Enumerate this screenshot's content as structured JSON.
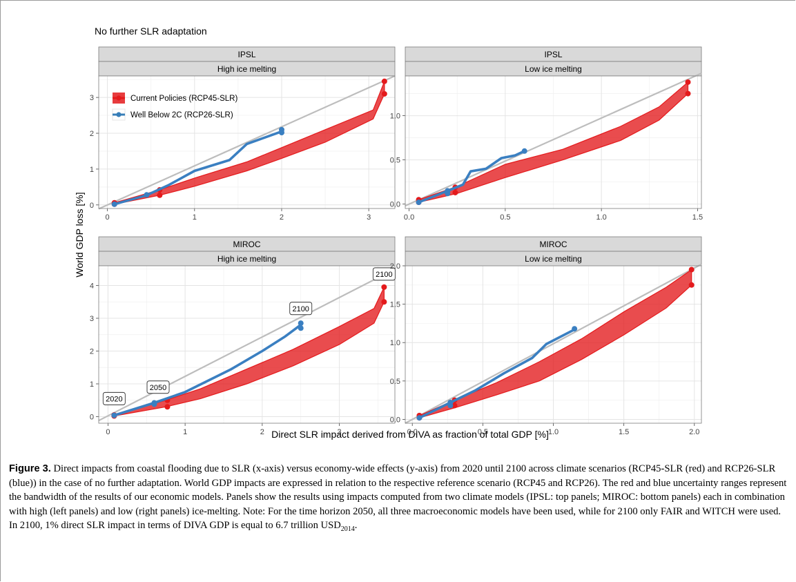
{
  "figure": {
    "title": "No further SLR adaptation",
    "xlabel": "Direct SLR impact derived from DIVA as fraction of total GDP [%]",
    "ylabel": "World GDP loss [%]",
    "legend": [
      {
        "label": "Current Policies (RCP45-SLR)",
        "color": "#e41a1c"
      },
      {
        "label": "Well Below 2C (RCP26-SLR)",
        "color": "#377eb8"
      }
    ],
    "colors": {
      "red": "#e41a1c",
      "red_fill": "#e31a1c",
      "blue": "#3a7fc1",
      "ref_line": "#bdbdbd",
      "strip": "#d9d9d9"
    }
  },
  "chart_data": [
    {
      "type": "area",
      "strip1": "IPSL",
      "strip2": "High ice melting",
      "xlim": [
        -0.1,
        3.3
      ],
      "ylim": [
        -0.1,
        3.6
      ],
      "xticks": [
        0,
        1,
        2,
        3
      ],
      "yticks": [
        0,
        1,
        2,
        3
      ],
      "xtick_labels": [
        "0",
        "1",
        "2",
        "3"
      ],
      "ytick_labels": [
        "0",
        "1",
        "2",
        "3"
      ],
      "reference_line": [
        [
          -0.1,
          -0.11
        ],
        [
          3.3,
          3.6
        ]
      ],
      "series": [
        {
          "name": "Current Policies (RCP45-SLR)",
          "x": [
            0.08,
            0.6,
            1.0,
            1.6,
            2.0,
            2.5,
            3.05,
            3.18
          ],
          "upper": [
            0.06,
            0.42,
            0.75,
            1.2,
            1.6,
            2.1,
            2.65,
            3.45
          ],
          "lower": [
            0.02,
            0.27,
            0.52,
            0.95,
            1.3,
            1.75,
            2.4,
            3.1
          ],
          "points": [
            [
              0.08,
              0.06
            ],
            [
              0.08,
              0.02
            ],
            [
              0.6,
              0.42
            ],
            [
              0.6,
              0.27
            ],
            [
              3.18,
              3.45
            ],
            [
              3.18,
              3.1
            ]
          ]
        },
        {
          "name": "Well Below 2C (RCP26-SLR)",
          "x": [
            0.08,
            0.45,
            0.7,
            1.0,
            1.4,
            1.6,
            2.0
          ],
          "y": [
            0.02,
            0.27,
            0.55,
            0.95,
            1.25,
            1.7,
            2.05
          ],
          "points": [
            [
              0.08,
              0.02
            ],
            [
              0.45,
              0.28
            ],
            [
              2.0,
              2.1
            ],
            [
              2.0,
              2.02
            ]
          ]
        }
      ]
    },
    {
      "type": "area",
      "strip1": "IPSL",
      "strip2": "Low ice melting",
      "xlim": [
        -0.02,
        1.52
      ],
      "ylim": [
        -0.05,
        1.45
      ],
      "xticks": [
        0,
        0.5,
        1.0,
        1.5
      ],
      "yticks": [
        0,
        0.5,
        1.0
      ],
      "xtick_labels": [
        "0.0",
        "0.5",
        "1.0",
        "1.5"
      ],
      "ytick_labels": [
        "0.0",
        "0.5",
        "1.0"
      ],
      "reference_line": [
        [
          -0.02,
          -0.02
        ],
        [
          1.52,
          1.48
        ]
      ],
      "series": [
        {
          "name": "Current Policies (RCP45-SLR)",
          "x": [
            0.05,
            0.25,
            0.5,
            0.8,
            1.1,
            1.3,
            1.45
          ],
          "upper": [
            0.05,
            0.2,
            0.45,
            0.62,
            0.88,
            1.1,
            1.38
          ],
          "lower": [
            0.02,
            0.12,
            0.3,
            0.5,
            0.72,
            0.95,
            1.25
          ],
          "points": [
            [
              0.05,
              0.05
            ],
            [
              0.05,
              0.02
            ],
            [
              0.24,
              0.19
            ],
            [
              0.24,
              0.13
            ],
            [
              1.45,
              1.38
            ],
            [
              1.45,
              1.25
            ]
          ]
        },
        {
          "name": "Well Below 2C (RCP26-SLR)",
          "x": [
            0.05,
            0.2,
            0.28,
            0.32,
            0.4,
            0.48,
            0.55,
            0.6
          ],
          "y": [
            0.02,
            0.15,
            0.22,
            0.37,
            0.4,
            0.52,
            0.55,
            0.6
          ],
          "points": [
            [
              0.05,
              0.02
            ],
            [
              0.2,
              0.15
            ],
            [
              0.2,
              0.12
            ],
            [
              0.6,
              0.6
            ]
          ]
        }
      ]
    },
    {
      "type": "area",
      "strip1": "MIROC",
      "strip2": "High ice melting",
      "xlim": [
        -0.12,
        3.72
      ],
      "ylim": [
        -0.2,
        4.6
      ],
      "xticks": [
        0,
        1,
        2,
        3
      ],
      "yticks": [
        0,
        1,
        2,
        3,
        4
      ],
      "xtick_labels": [
        "0",
        "1",
        "2",
        "3"
      ],
      "ytick_labels": [
        "0",
        "1",
        "2",
        "3",
        "4"
      ],
      "reference_line": [
        [
          -0.12,
          -0.12
        ],
        [
          3.72,
          4.5
        ]
      ],
      "series": [
        {
          "name": "Current Policies (RCP45-SLR)",
          "x": [
            0.08,
            0.75,
            1.2,
            1.8,
            2.4,
            3.0,
            3.45,
            3.58
          ],
          "upper": [
            0.05,
            0.5,
            0.85,
            1.45,
            2.05,
            2.75,
            3.3,
            3.95
          ],
          "lower": [
            0.02,
            0.3,
            0.55,
            1.0,
            1.55,
            2.2,
            2.85,
            3.5
          ],
          "points": [
            [
              0.08,
              0.05
            ],
            [
              0.08,
              0.02
            ],
            [
              0.77,
              0.5
            ],
            [
              0.77,
              0.3
            ],
            [
              3.58,
              3.95
            ],
            [
              3.58,
              3.5
            ]
          ]
        },
        {
          "name": "Well Below 2C (RCP26-SLR)",
          "x": [
            0.08,
            0.6,
            1.0,
            1.6,
            2.0,
            2.3,
            2.5
          ],
          "y": [
            0.04,
            0.42,
            0.75,
            1.45,
            2.0,
            2.45,
            2.8
          ],
          "points": [
            [
              0.08,
              0.04
            ],
            [
              0.6,
              0.42
            ],
            [
              0.6,
              0.38
            ],
            [
              2.5,
              2.85
            ],
            [
              2.5,
              2.7
            ]
          ]
        }
      ],
      "annotations": [
        {
          "text": "2020",
          "x": 0.08,
          "y": 0.55
        },
        {
          "text": "2050",
          "x": 0.65,
          "y": 0.9
        },
        {
          "text": "2100",
          "x": 2.5,
          "y": 3.3
        },
        {
          "text": "2100",
          "x": 3.58,
          "y": 4.35
        }
      ]
    },
    {
      "type": "area",
      "strip1": "MIROC",
      "strip2": "Low ice melting",
      "xlim": [
        -0.05,
        2.05
      ],
      "ylim": [
        -0.05,
        2.0
      ],
      "xticks": [
        0,
        0.5,
        1.0,
        1.5,
        2.0
      ],
      "yticks": [
        0,
        0.5,
        1.0,
        1.5,
        2.0
      ],
      "xtick_labels": [
        "0.0",
        "0.5",
        "1.0",
        "1.5",
        "2.0"
      ],
      "ytick_labels": [
        "0.0",
        "0.5",
        "1.0",
        "1.5",
        "2.0"
      ],
      "reference_line": [
        [
          -0.05,
          -0.05
        ],
        [
          2.05,
          2.02
        ]
      ],
      "series": [
        {
          "name": "Current Policies (RCP45-SLR)",
          "x": [
            0.05,
            0.3,
            0.6,
            0.9,
            1.2,
            1.5,
            1.8,
            1.98
          ],
          "upper": [
            0.05,
            0.25,
            0.48,
            0.75,
            1.05,
            1.4,
            1.72,
            1.95
          ],
          "lower": [
            0.02,
            0.15,
            0.32,
            0.5,
            0.78,
            1.1,
            1.45,
            1.75
          ],
          "points": [
            [
              0.05,
              0.05
            ],
            [
              0.05,
              0.02
            ],
            [
              0.3,
              0.25
            ],
            [
              0.3,
              0.18
            ],
            [
              1.98,
              1.95
            ],
            [
              1.98,
              1.75
            ]
          ]
        },
        {
          "name": "Well Below 2C (RCP26-SLR)",
          "x": [
            0.05,
            0.27,
            0.45,
            0.65,
            0.85,
            0.95,
            1.15
          ],
          "y": [
            0.02,
            0.22,
            0.38,
            0.6,
            0.8,
            0.98,
            1.17
          ],
          "points": [
            [
              0.05,
              0.02
            ],
            [
              0.27,
              0.22
            ],
            [
              0.27,
              0.18
            ],
            [
              1.15,
              1.18
            ]
          ]
        }
      ]
    }
  ],
  "caption": {
    "lead": "Figure 3.",
    "text_before_sub": " Direct impacts from coastal flooding due to SLR (x-axis) versus economy-wide effects (y-axis) from 2020 until 2100 across climate scenarios (RCP45-SLR (red) and RCP26-SLR (blue)) in the case of no further adaptation. World GDP impacts are expressed in relation to the respective reference scenario (RCP45 and RCP26). The red and blue uncertainty ranges represent the bandwidth of the results of our economic models. Panels show the results using impacts computed from two climate models (IPSL: top panels; MIROC: bottom panels) each in combination with high (left panels) and low (right panels) ice-melting. Note: For the time horizon 2050, all three macroeconomic models have been used, while for 2100 only FAIR and WITCH were used. In 2100, 1% direct SLR impact in terms of DIVA GDP is equal to 6.7 trillion USD",
    "sub": "2014",
    "text_after_sub": "."
  }
}
